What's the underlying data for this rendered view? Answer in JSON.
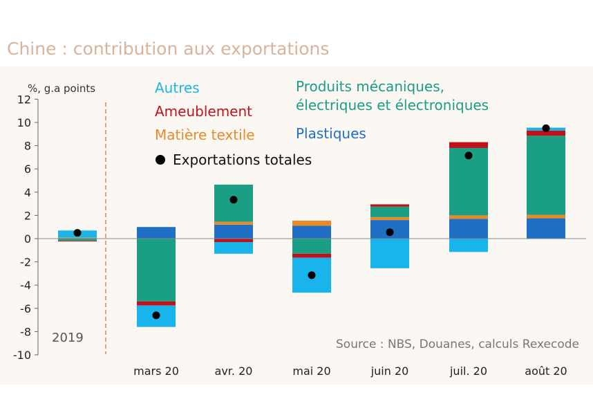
{
  "title": "Chine : contribution aux exportations",
  "colors": {
    "autres": "#1ab4ec",
    "ameublement": "#c0121a",
    "textile": "#e88a2a",
    "produits": "#1a9e84",
    "plastiques": "#1f6fc5",
    "total": "#000000"
  },
  "chart_data": {
    "type": "bar",
    "stacked": true,
    "unit_label": "%, g.a points",
    "ylim": [
      -10,
      12
    ],
    "yticks": [
      -10,
      -8,
      -6,
      -4,
      -2,
      0,
      2,
      4,
      6,
      8,
      10,
      12
    ],
    "categories": [
      "2019",
      "mars 20",
      "avr. 20",
      "mai 20",
      "juin 20",
      "juil. 20",
      "août 20"
    ],
    "series": [
      {
        "name": "Plastiques",
        "key": "plastiques",
        "values": [
          0.05,
          1.0,
          1.2,
          1.1,
          1.6,
          1.7,
          1.75
        ]
      },
      {
        "name": "Matière textile",
        "key": "textile",
        "values": [
          0.05,
          0.0,
          0.25,
          0.45,
          0.25,
          0.3,
          0.3
        ]
      },
      {
        "name": "Produits mécaniques, électriques et électroniques",
        "key": "produits",
        "values": [
          -0.2,
          -5.4,
          3.2,
          -1.3,
          0.9,
          5.8,
          6.8
        ]
      },
      {
        "name": "Ameublement",
        "key": "ameublement",
        "values": [
          -0.05,
          -0.35,
          -0.3,
          -0.35,
          0.2,
          0.5,
          0.45
        ]
      },
      {
        "name": "Autres",
        "key": "autres",
        "values": [
          0.6,
          -1.85,
          -1.0,
          -3.0,
          -2.55,
          -1.15,
          0.25
        ]
      }
    ],
    "total": {
      "name": "Exportations totales",
      "values": [
        0.5,
        -6.6,
        3.35,
        -3.15,
        0.55,
        7.15,
        9.5
      ]
    },
    "annotations": {
      "year_label": "2019",
      "source": "Source : NBS, Douanes, calculs Rexecode"
    },
    "legend": {
      "autres": "Autres",
      "ameublement": "Ameublement",
      "textile": "Matière textile",
      "total": "Exportations totales",
      "produits_line1": "Produits mécaniques,",
      "produits_line2": "électriques et électroniques",
      "plastiques": "Plastiques"
    }
  }
}
